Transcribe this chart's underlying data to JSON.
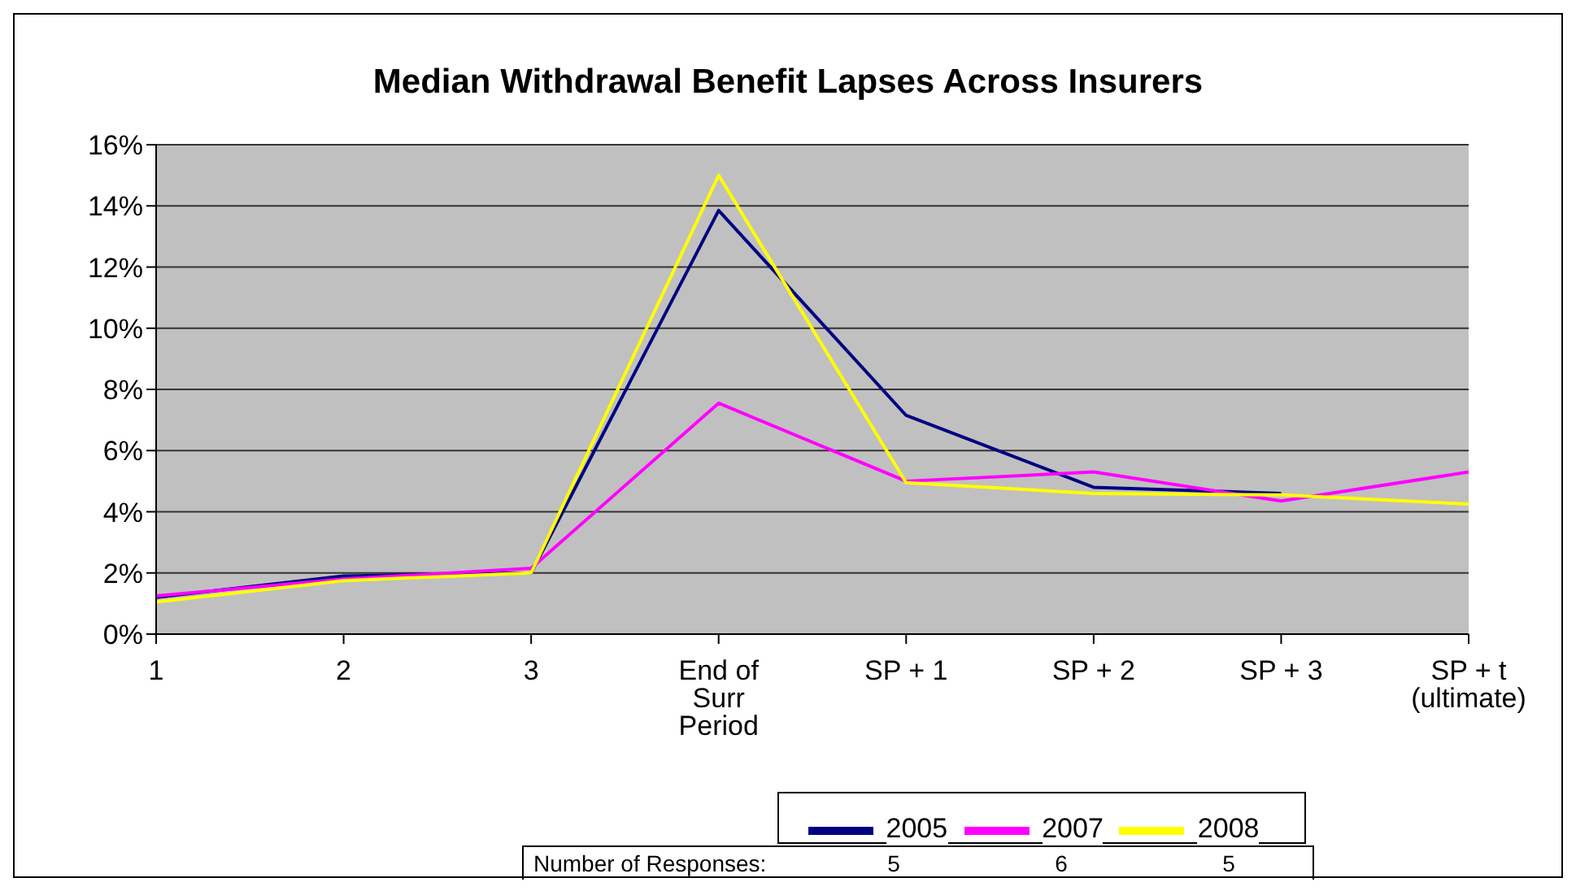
{
  "chart_data": {
    "type": "line",
    "title": "Median Withdrawal Benefit Lapses Across Insurers",
    "categories": [
      "1",
      "2",
      "3",
      "End of Surr Period",
      "SP + 1",
      "SP + 2",
      "SP + 3",
      "SP + t (ultimate)"
    ],
    "series": [
      {
        "name": "2005",
        "color": "#000080",
        "values": [
          1.2,
          1.9,
          2.0,
          13.85,
          7.15,
          4.8,
          4.6,
          null
        ]
      },
      {
        "name": "2007",
        "color": "#ff00ff",
        "values": [
          1.25,
          1.8,
          2.15,
          7.55,
          5.0,
          5.3,
          4.35,
          5.3
        ]
      },
      {
        "name": "2008",
        "color": "#ffff00",
        "values": [
          1.05,
          1.75,
          2.0,
          15.0,
          4.95,
          4.6,
          4.55,
          4.25
        ]
      }
    ],
    "ylim": [
      0,
      16
    ],
    "yticks": [
      {
        "value": 0,
        "label": "0%"
      },
      {
        "value": 2,
        "label": "2%"
      },
      {
        "value": 4,
        "label": "4%"
      },
      {
        "value": 6,
        "label": "6%"
      },
      {
        "value": 8,
        "label": "8%"
      },
      {
        "value": 10,
        "label": "10%"
      },
      {
        "value": 12,
        "label": "12%"
      },
      {
        "value": 14,
        "label": "14%"
      },
      {
        "value": 16,
        "label": "16%"
      }
    ],
    "grid": "y",
    "legend": "bottom",
    "marker": "none",
    "line_style": "solid",
    "annotations": [
      "Number of Responses:",
      "5",
      "6",
      "5"
    ]
  }
}
